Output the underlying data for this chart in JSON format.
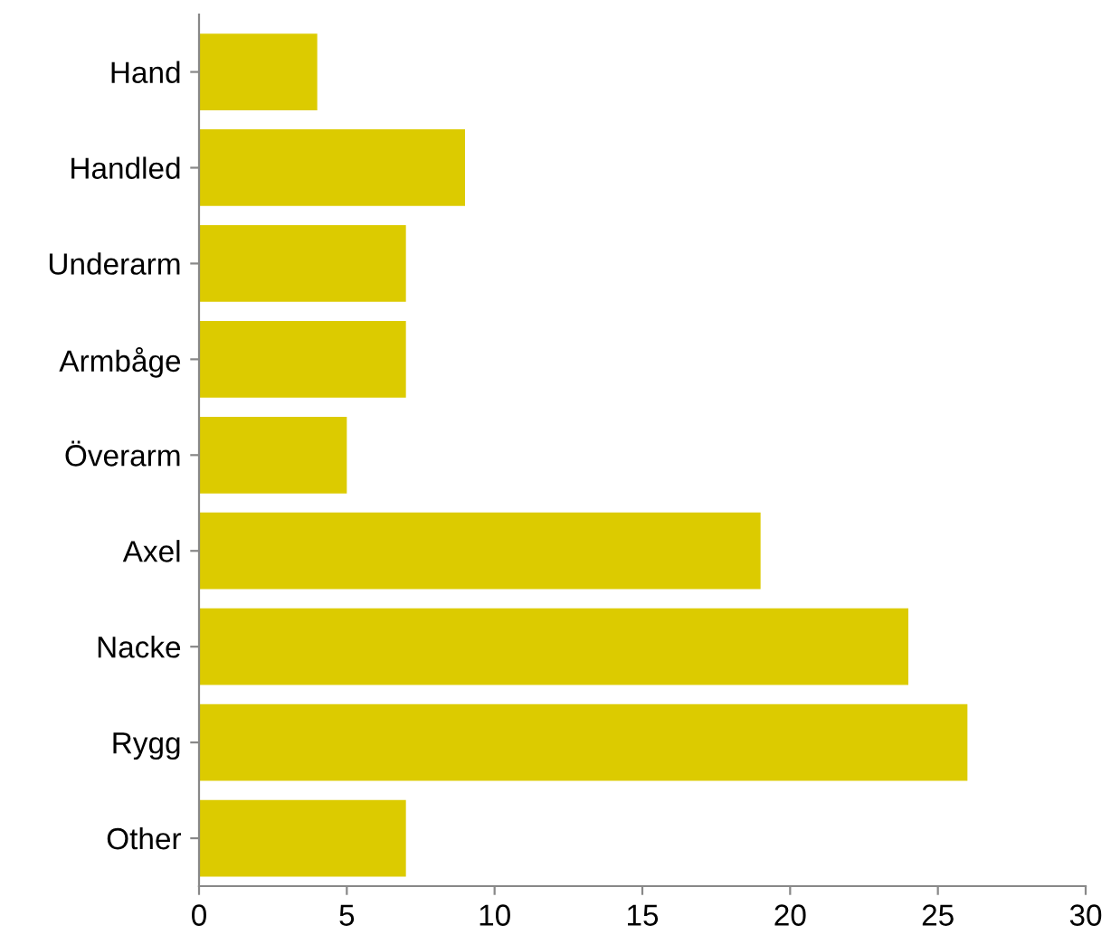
{
  "chart_data": {
    "type": "bar",
    "orientation": "horizontal",
    "categories": [
      "Hand",
      "Handled",
      "Underarm",
      "Armbåge",
      "Överarm",
      "Axel",
      "Nacke",
      "Rygg",
      "Other"
    ],
    "values": [
      4,
      9,
      7,
      7,
      5,
      19,
      24,
      26,
      7
    ],
    "color": "#dccb00",
    "xlim": [
      0,
      30
    ],
    "xticks": [
      0,
      5,
      10,
      15,
      20,
      25,
      30
    ],
    "grid": false,
    "legend": false
  }
}
